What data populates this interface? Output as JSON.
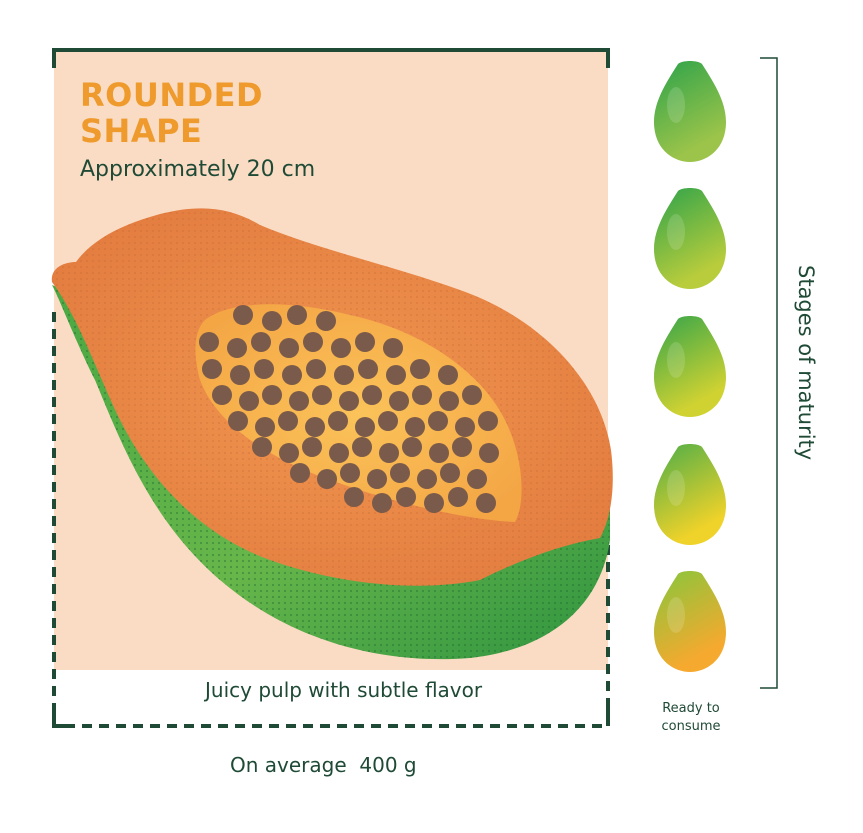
{
  "labels": {
    "shape_title_line1": "ROUNDED",
    "shape_title_line2": "SHAPE",
    "size": "Approximately 20 cm",
    "pulp": "Juicy pulp with subtle flavor",
    "weight": "On average  400 g",
    "maturity": "Stages of maturity",
    "ready_line1": "Ready to",
    "ready_line2": "consume"
  },
  "colors": {
    "title_accent": "#ef9a2c",
    "text_dark_green": "#1f4a36",
    "background_panel": "#fadcc4",
    "flesh_orange": "#ec8a4b",
    "pulp_yellow": "#f7b34c",
    "seed_brown": "#7a5a4a",
    "skin_green": "#3aa04a"
  },
  "maturity_stages": [
    {
      "stage": 1,
      "color_top": "#3ea84a",
      "color_bottom": "#9cc44a"
    },
    {
      "stage": 2,
      "color_top": "#44aa48",
      "color_bottom": "#b8cc3c"
    },
    {
      "stage": 3,
      "color_top": "#4dac46",
      "color_bottom": "#d0d232"
    },
    {
      "stage": 4,
      "color_top": "#66b344",
      "color_bottom": "#efd22a"
    },
    {
      "stage": 5,
      "color_top": "#98c23a",
      "color_bottom": "#f6a92f"
    }
  ],
  "icons": [
    "papaya-half-illustration",
    "papaya-icon"
  ]
}
